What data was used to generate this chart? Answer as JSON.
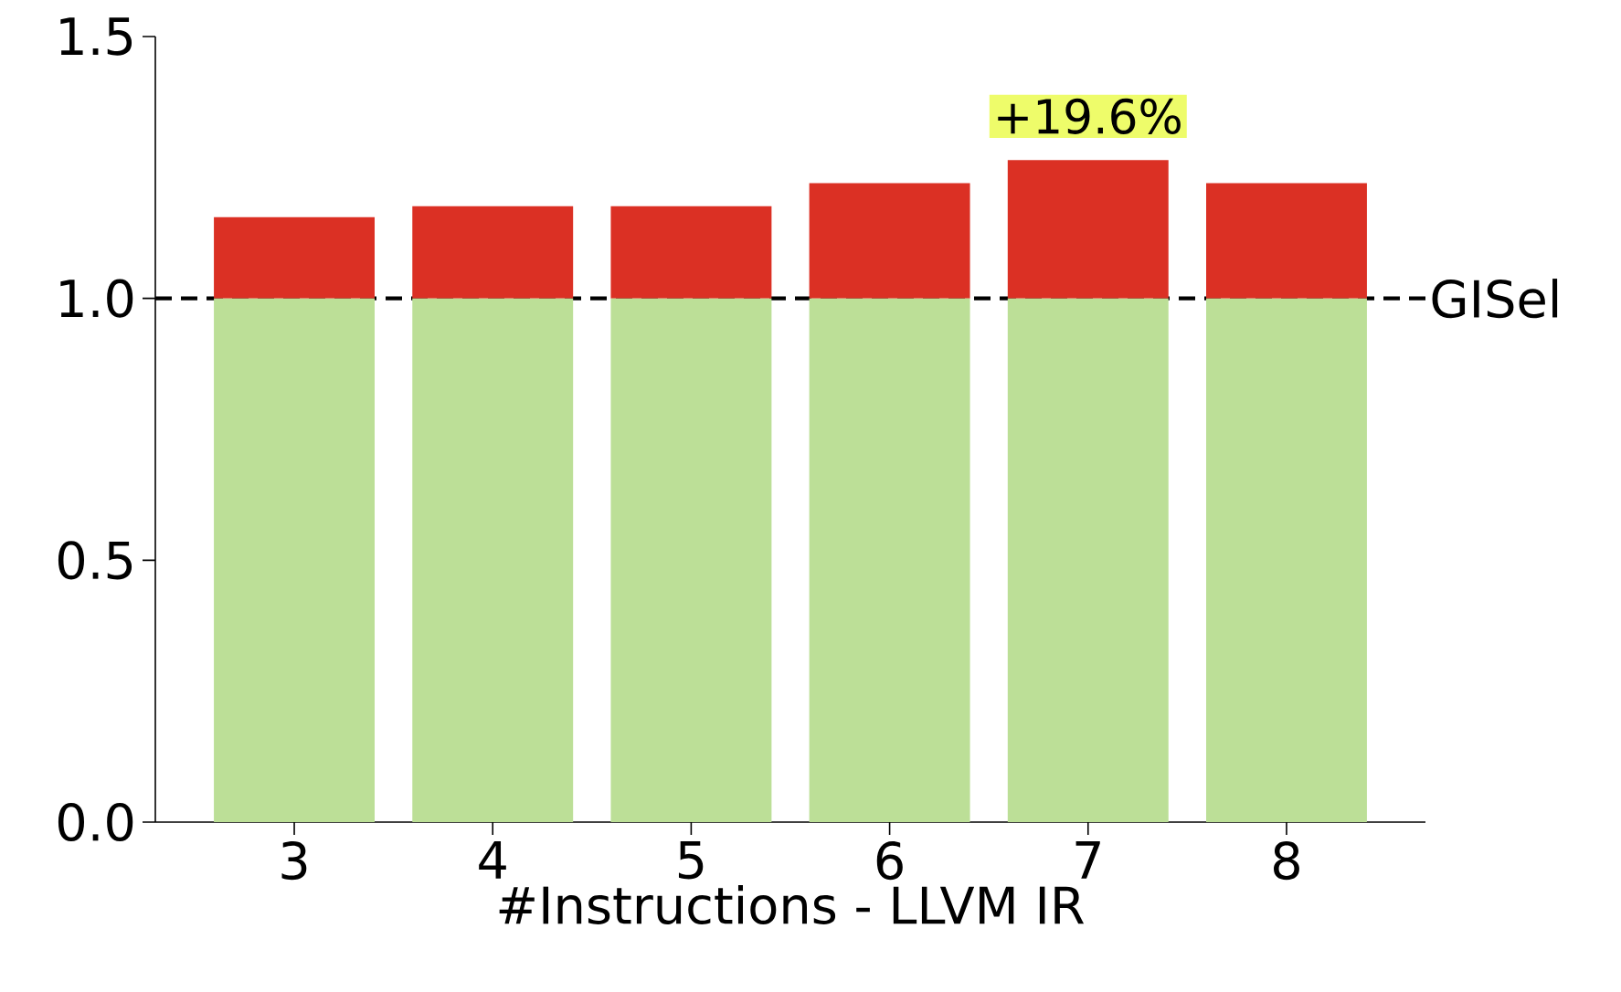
{
  "chart_data": {
    "type": "bar",
    "stacked": true,
    "xlabel": "#Instructions - LLVM IR",
    "categories": [
      "3",
      "4",
      "5",
      "6",
      "7",
      "8"
    ],
    "series": [
      {
        "color": "#bcdf97",
        "values": [
          1.0,
          1.0,
          1.0,
          1.0,
          1.0,
          1.0
        ]
      },
      {
        "color": "#db3024",
        "values": [
          0.155,
          0.176,
          0.176,
          0.22,
          0.264,
          0.22
        ]
      }
    ],
    "ylim": [
      0,
      1.5
    ],
    "yticks": [
      {
        "value": 0,
        "label": "0.0"
      },
      0.5,
      {
        "value": 1,
        "label": "1.0"
      },
      1.5
    ],
    "ref_lines": [
      {
        "axis": "y",
        "value": 1.0,
        "label": "GISel",
        "color": "#000000",
        "line_style": "dashed"
      }
    ],
    "annotations": [
      {
        "text": "+19.6%",
        "x": "7",
        "y": 1.264
      }
    ]
  }
}
